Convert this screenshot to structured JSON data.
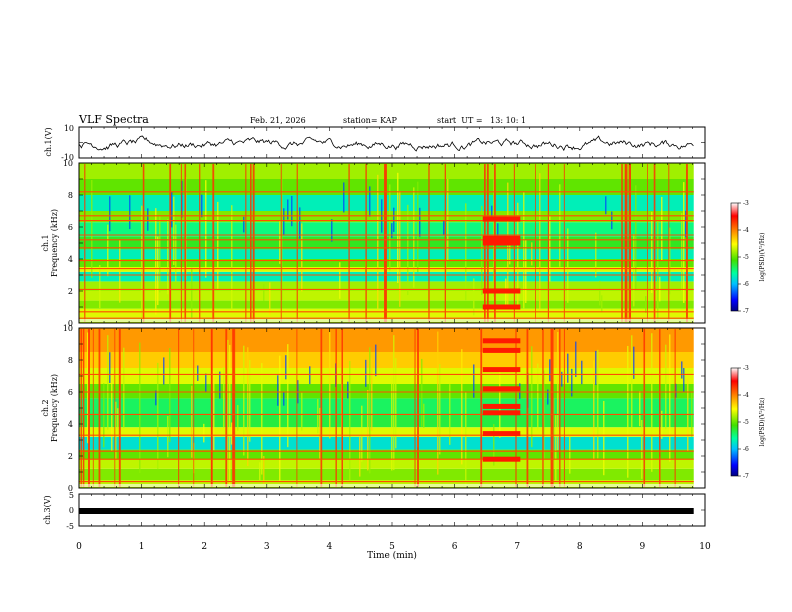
{
  "header": {
    "title": "VLF Spectra",
    "date": "Feb. 21, 2026",
    "station": "station= KAP",
    "start_ut": "start  UT =   13: 10: 1"
  },
  "chart_data": [
    {
      "type": "line",
      "panel": "ch1-voltage",
      "ylabel": "ch.1(V)",
      "ylim": [
        -10,
        10
      ],
      "yticks": [
        "10",
        "-10"
      ],
      "xlim": [
        0,
        10
      ],
      "x_range_data": [
        0,
        9.82
      ],
      "description_series": "noisy waveform around -1 V, amplitude about ±4 V"
    },
    {
      "type": "heatmap",
      "panel": "ch1-spectrogram",
      "ylabel_line1": "ch.1",
      "ylabel_line2": "Frequency (kHz)",
      "ylim": [
        0,
        10
      ],
      "yticks": [
        "0",
        "2",
        "4",
        "6",
        "8",
        "10"
      ],
      "xlim": [
        0,
        10
      ],
      "colorbar": {
        "label": "log(PSD)(V²/Hz)",
        "range": [
          -7,
          -3
        ],
        "ticks": [
          "-3",
          "-4",
          "-5",
          "-6",
          "-7"
        ],
        "colors": [
          "#000080",
          "#0000ff",
          "#00c0ff",
          "#00ffa0",
          "#40e000",
          "#ffff00",
          "#ff8000",
          "#ff0000",
          "#ffffff"
        ]
      },
      "bands": [
        {
          "f": [
            0.0,
            0.35
          ],
          "value": -4.7
        },
        {
          "f": [
            0.35,
            0.9
          ],
          "value": -4.6
        },
        {
          "f": [
            0.9,
            1.4
          ],
          "value": -4.9
        },
        {
          "f": [
            1.4,
            2.0
          ],
          "value": -4.7
        },
        {
          "f": [
            2.0,
            2.6
          ],
          "value": -4.8
        },
        {
          "f": [
            2.6,
            3.2
          ],
          "value": -5.7
        },
        {
          "f": [
            3.2,
            3.5
          ],
          "value": -4.6
        },
        {
          "f": [
            3.5,
            4.0
          ],
          "value": -5.0
        },
        {
          "f": [
            4.0,
            4.6
          ],
          "value": -5.7
        },
        {
          "f": [
            4.6,
            5.4
          ],
          "value": -5.2
        },
        {
          "f": [
            5.4,
            6.3
          ],
          "value": -5.5
        },
        {
          "f": [
            6.3,
            7.0
          ],
          "value": -4.9
        },
        {
          "f": [
            7.0,
            8.0
          ],
          "value": -5.7
        },
        {
          "f": [
            8.0,
            9.0
          ],
          "value": -5.0
        },
        {
          "f": [
            9.0,
            10.0
          ],
          "value": -4.8
        }
      ],
      "tone_lines_khz": [
        0.3,
        0.7,
        2.1,
        3.0,
        3.4,
        3.9,
        4.7,
        5.2,
        5.5,
        6.4,
        6.7,
        8.2
      ],
      "burst_window_min": [
        6.45,
        7.05
      ],
      "burst_lines_khz": [
        1.0,
        2.0,
        5.0,
        5.3,
        6.5
      ]
    },
    {
      "type": "heatmap",
      "panel": "ch2-spectrogram",
      "ylabel_line1": "ch.2",
      "ylabel_line2": "Frequency (kHz)",
      "ylim": [
        0,
        10
      ],
      "yticks": [
        "0",
        "2",
        "4",
        "6",
        "8",
        "10"
      ],
      "xlim": [
        0,
        10
      ],
      "colorbar": {
        "label": "log(PSD)(V²/Hz)",
        "range": [
          -7,
          -3
        ],
        "ticks": [
          "-3",
          "-4",
          "-5",
          "-6",
          "-7"
        ]
      },
      "bands": [
        {
          "f": [
            0.0,
            0.5
          ],
          "value": -4.7
        },
        {
          "f": [
            0.5,
            1.2
          ],
          "value": -4.9
        },
        {
          "f": [
            1.2,
            1.8
          ],
          "value": -4.7
        },
        {
          "f": [
            1.8,
            2.4
          ],
          "value": -5.0
        },
        {
          "f": [
            2.4,
            3.2
          ],
          "value": -5.8
        },
        {
          "f": [
            3.2,
            3.8
          ],
          "value": -4.6
        },
        {
          "f": [
            3.8,
            4.6
          ],
          "value": -5.3
        },
        {
          "f": [
            4.6,
            5.6
          ],
          "value": -5.4
        },
        {
          "f": [
            5.6,
            6.5
          ],
          "value": -5.0
        },
        {
          "f": [
            6.5,
            7.5
          ],
          "value": -4.6
        },
        {
          "f": [
            7.5,
            8.5
          ],
          "value": -4.3
        },
        {
          "f": [
            8.5,
            10.0
          ],
          "value": -4.1
        }
      ],
      "tone_lines_khz": [
        0.4,
        1.8,
        2.3,
        3.3,
        4.6,
        6.0,
        7.1
      ],
      "burst_window_min": [
        6.45,
        7.05
      ],
      "burst_lines_khz": [
        1.8,
        3.4,
        4.7,
        5.1,
        6.2,
        7.4,
        8.6,
        9.2
      ]
    },
    {
      "type": "line",
      "panel": "ch3-voltage",
      "ylabel": "ch.3(V)",
      "ylim": [
        -5,
        5
      ],
      "yticks": [
        "5",
        "0",
        "-5"
      ],
      "series": [
        {
          "name": "ch.3",
          "value": -0.3
        }
      ],
      "xlim": [
        0,
        10
      ],
      "x_range_data": [
        0,
        9.82
      ],
      "xlabel": "Time (min)",
      "xticks": [
        "0",
        "1",
        "2",
        "3",
        "4",
        "5",
        "6",
        "7",
        "8",
        "9",
        "10"
      ]
    }
  ]
}
